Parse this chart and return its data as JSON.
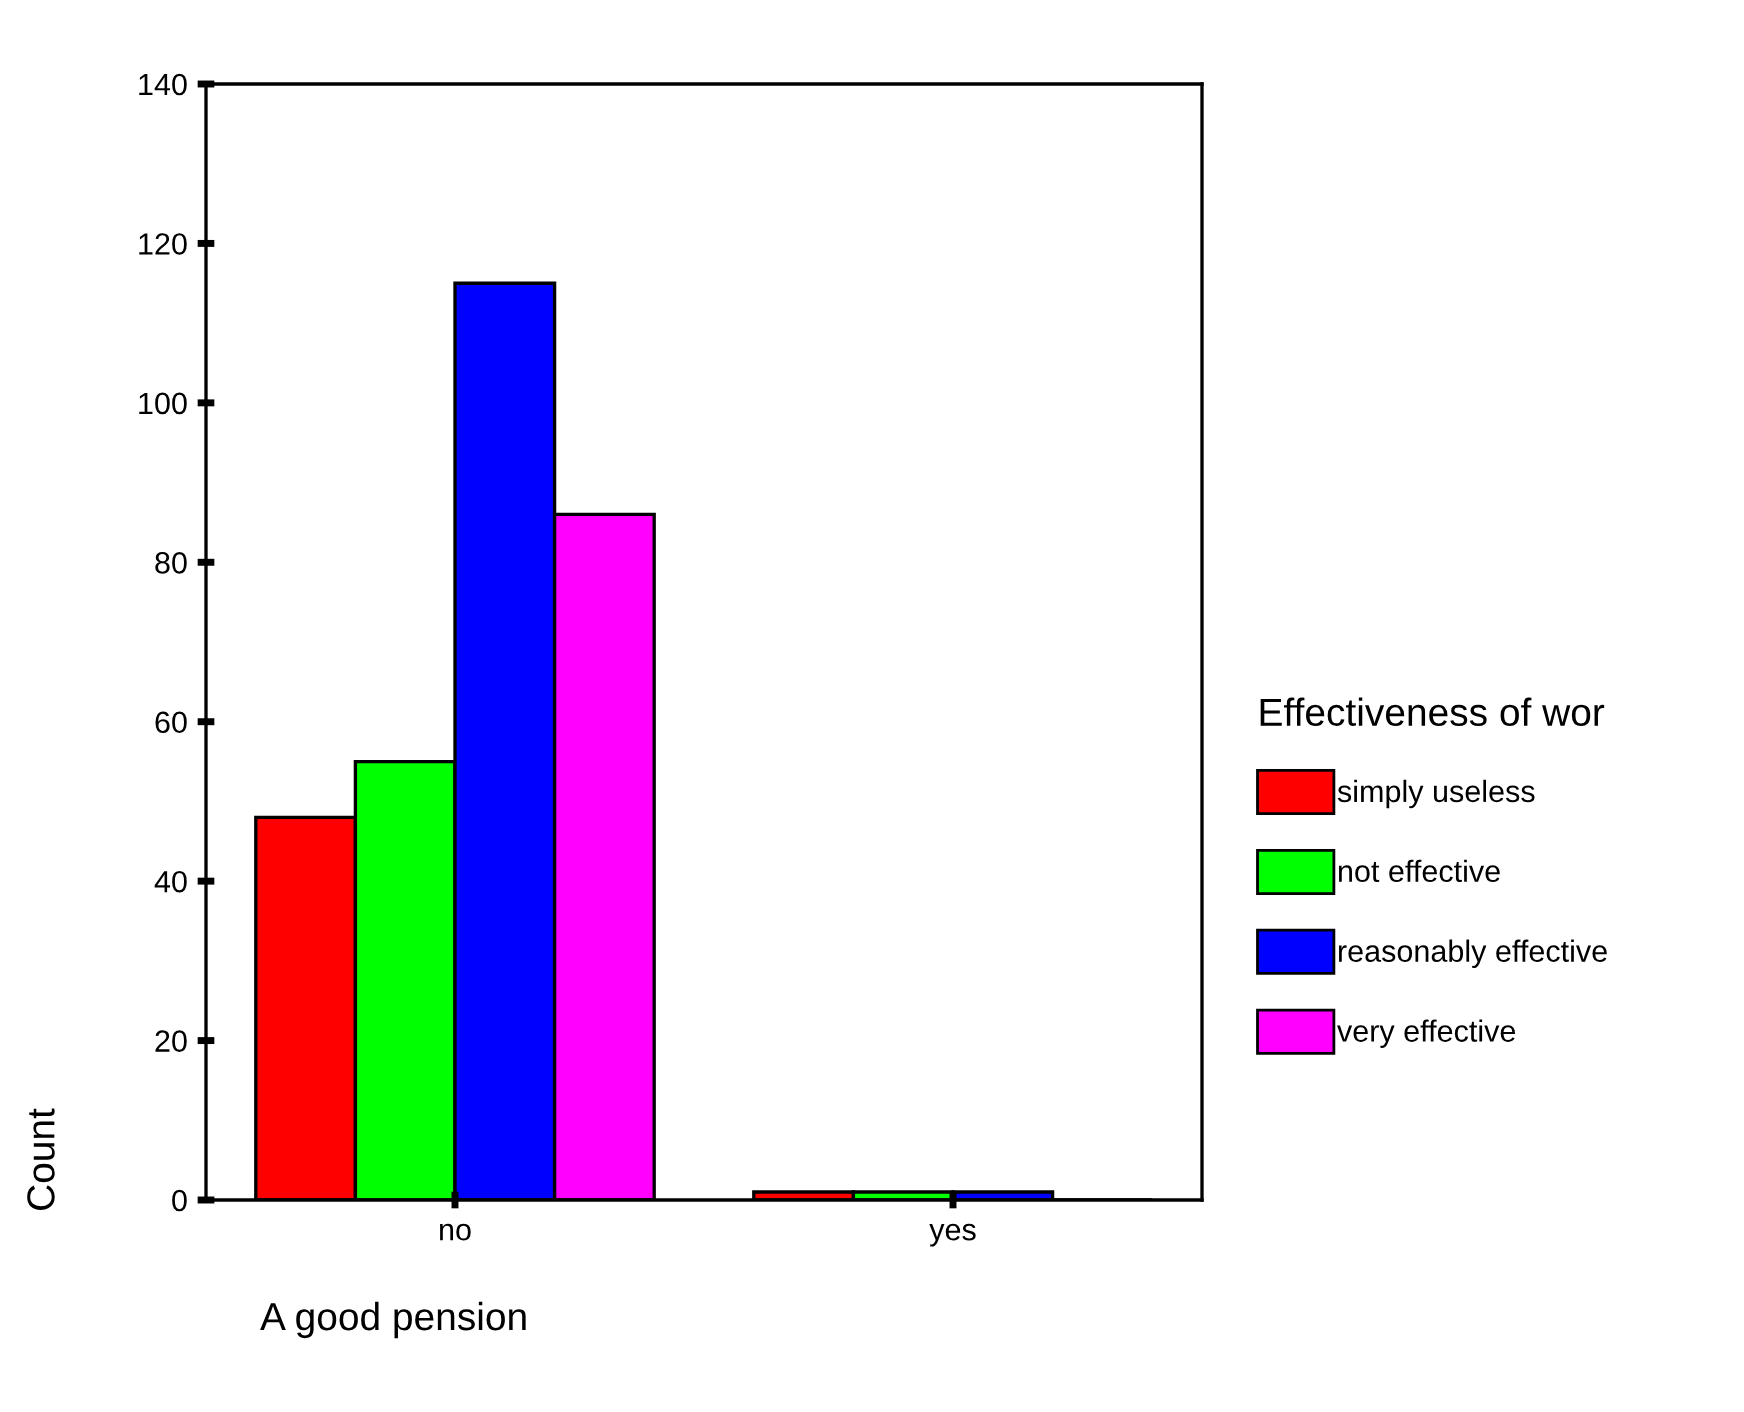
{
  "chart_data": {
    "type": "bar",
    "xlabel": "A good pension",
    "ylabel": "Count",
    "legend_title": "Effectiveness of wor",
    "categories": [
      "no",
      "yes"
    ],
    "series": [
      {
        "name": "simply useless",
        "color": "#ff0000",
        "values": [
          48,
          1
        ]
      },
      {
        "name": "not effective",
        "color": "#00ff00",
        "values": [
          55,
          1
        ]
      },
      {
        "name": "reasonably effective",
        "color": "#0000ff",
        "values": [
          115,
          1
        ]
      },
      {
        "name": "very effective",
        "color": "#ff00ff",
        "values": [
          86,
          0
        ]
      }
    ],
    "ylim": [
      0,
      140
    ],
    "yticks": [
      0,
      20,
      40,
      60,
      80,
      100,
      120,
      140
    ],
    "grid": false,
    "legend": "right"
  }
}
